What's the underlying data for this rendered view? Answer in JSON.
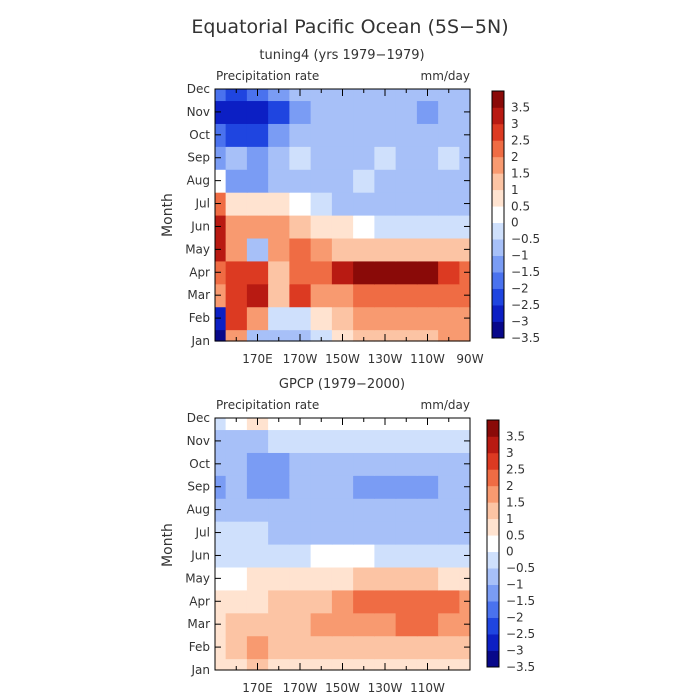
{
  "figure": {
    "title": "Equatorial Pacific Ocean (5S−5N)"
  },
  "colorbar_colors": [
    "#08088a",
    "#0c1fc4",
    "#1f45e0",
    "#4a72ee",
    "#7a9cf4",
    "#a7c0f8",
    "#cfe0fc",
    "#ffffff",
    "#ffe3d0",
    "#fcc4a4",
    "#f89a70",
    "#ef6c44",
    "#dc3a22",
    "#b81a12",
    "#8a0a08"
  ],
  "chart_data": [
    {
      "type": "heatmap",
      "title": "tuning4 (yrs 1979−1979)",
      "left_label": "Precipitation rate",
      "units": "mm/day",
      "ylabel": "Month",
      "xlabel": "",
      "y_ticks": [
        "Jan",
        "Feb",
        "Mar",
        "Apr",
        "May",
        "Jun",
        "Jul",
        "Aug",
        "Sep",
        "Oct",
        "Nov",
        "Dec"
      ],
      "x_ticks": [
        "170E",
        "170W",
        "150W",
        "130W",
        "110W",
        "90W"
      ],
      "xlim": [
        150,
        270
      ],
      "levels": [
        "3.5",
        "3",
        "2.5",
        "2",
        "1.5",
        "1",
        "0.5",
        "0",
        "−0.5",
        "−1",
        "−1.5",
        "−2",
        "−2.5",
        "−3",
        "−3.5"
      ],
      "lon": [
        150,
        160,
        170,
        180,
        190,
        200,
        210,
        220,
        230,
        240,
        250,
        260,
        270
      ],
      "values": [
        [
          -3.5,
          1.5,
          -1.0,
          -1.0,
          -1.0,
          -0.5,
          0.5,
          1.0,
          1.0,
          1.0,
          1.0,
          1.5,
          1.5
        ],
        [
          -3.0,
          2.5,
          1.5,
          -0.5,
          -0.5,
          0.5,
          1.0,
          1.5,
          1.5,
          1.5,
          1.5,
          1.5,
          1.5
        ],
        [
          1.5,
          2.5,
          3.0,
          1.0,
          2.5,
          1.5,
          1.5,
          2.0,
          2.0,
          2.0,
          2.0,
          2.0,
          2.0
        ],
        [
          2.0,
          2.5,
          2.5,
          1.0,
          2.0,
          2.0,
          3.0,
          3.5,
          3.5,
          3.5,
          3.5,
          2.5,
          2.0
        ],
        [
          3.0,
          1.5,
          -1.0,
          1.5,
          2.0,
          1.5,
          1.0,
          1.0,
          1.0,
          1.0,
          1.0,
          1.0,
          1.0
        ],
        [
          3.0,
          1.5,
          1.5,
          1.5,
          1.0,
          0.5,
          0.5,
          0.0,
          -0.5,
          -0.5,
          -0.5,
          -0.5,
          -0.5
        ],
        [
          2.0,
          0.5,
          0.5,
          0.5,
          0.0,
          -0.5,
          -1.0,
          -1.0,
          -1.0,
          -1.0,
          -1.0,
          -1.0,
          -1.0
        ],
        [
          0.0,
          -1.5,
          -1.5,
          -1.0,
          -1.0,
          -1.0,
          -1.0,
          -0.5,
          -1.0,
          -1.0,
          -1.0,
          -1.0,
          -1.0
        ],
        [
          -1.5,
          -1.0,
          -1.5,
          -1.0,
          -0.5,
          -1.0,
          -1.0,
          -1.0,
          -0.5,
          -1.0,
          -1.0,
          -0.5,
          -1.0
        ],
        [
          -2.0,
          -2.5,
          -2.5,
          -1.5,
          -1.0,
          -1.0,
          -1.0,
          -1.0,
          -1.0,
          -1.0,
          -1.0,
          -1.0,
          -1.0
        ],
        [
          -3.0,
          -3.0,
          -3.0,
          -2.5,
          -1.5,
          -1.0,
          -1.0,
          -1.0,
          -1.0,
          -1.0,
          -1.5,
          -1.0,
          -1.0
        ],
        [
          -2.0,
          -2.5,
          -2.0,
          -1.5,
          -1.0,
          -1.0,
          -1.0,
          -1.0,
          -1.0,
          -1.0,
          -1.0,
          -1.0,
          -1.0
        ]
      ]
    },
    {
      "type": "heatmap",
      "title": "GPCP (1979−2000)",
      "left_label": "Precipitation rate",
      "units": "mm/day",
      "ylabel": "Month",
      "xlabel": "",
      "y_ticks": [
        "Jan",
        "Feb",
        "Mar",
        "Apr",
        "May",
        "Jun",
        "Jul",
        "Aug",
        "Sep",
        "Oct",
        "Nov",
        "Dec"
      ],
      "x_ticks": [
        "170E",
        "170W",
        "150W",
        "130W",
        "110W"
      ],
      "xlim": [
        150,
        270
      ],
      "levels": [
        "3.5",
        "3",
        "2.5",
        "2",
        "1.5",
        "1",
        "0.5",
        "0",
        "−0.5",
        "−1",
        "−1.5",
        "−2",
        "−2.5",
        "−3",
        "−3.5"
      ],
      "lon": [
        150,
        160,
        170,
        180,
        190,
        200,
        210,
        220,
        230,
        240,
        250,
        260,
        270
      ],
      "values": [
        [
          0.5,
          0.5,
          1.0,
          0.5,
          0.5,
          0.5,
          0.5,
          0.5,
          0.5,
          0.5,
          0.5,
          0.5,
          0.5
        ],
        [
          0.5,
          1.0,
          1.5,
          1.0,
          1.0,
          1.0,
          1.0,
          1.0,
          1.0,
          1.0,
          1.0,
          1.0,
          1.0
        ],
        [
          0.5,
          1.0,
          1.0,
          1.0,
          1.0,
          1.5,
          1.5,
          1.5,
          1.5,
          2.0,
          2.0,
          1.5,
          1.5
        ],
        [
          0.5,
          0.5,
          0.5,
          1.0,
          1.0,
          1.0,
          1.5,
          2.0,
          2.0,
          2.0,
          2.0,
          2.0,
          1.5
        ],
        [
          0.0,
          0.0,
          0.5,
          0.5,
          0.5,
          0.5,
          0.5,
          1.0,
          1.0,
          1.0,
          1.0,
          0.5,
          0.5
        ],
        [
          -0.5,
          -0.5,
          -0.5,
          -0.5,
          -0.5,
          0.0,
          0.0,
          0.0,
          -0.5,
          -0.5,
          -0.5,
          -0.5,
          -0.5
        ],
        [
          -0.5,
          -0.5,
          -0.5,
          -1.0,
          -1.0,
          -1.0,
          -1.0,
          -1.0,
          -1.0,
          -1.0,
          -1.0,
          -1.0,
          -1.0
        ],
        [
          -1.0,
          -1.0,
          -1.0,
          -1.0,
          -1.0,
          -1.0,
          -1.0,
          -1.0,
          -1.0,
          -1.0,
          -1.0,
          -1.0,
          -1.0
        ],
        [
          -1.5,
          -1.0,
          -1.5,
          -1.5,
          -1.0,
          -1.0,
          -1.0,
          -1.5,
          -1.5,
          -1.5,
          -1.5,
          -1.0,
          -1.0
        ],
        [
          -1.0,
          -1.0,
          -1.5,
          -1.5,
          -1.0,
          -1.0,
          -1.0,
          -1.0,
          -1.0,
          -1.0,
          -1.0,
          -1.0,
          -1.0
        ],
        [
          -1.0,
          -1.0,
          -1.0,
          -0.5,
          -0.5,
          -0.5,
          -0.5,
          -0.5,
          -0.5,
          -0.5,
          -0.5,
          -0.5,
          -0.5
        ],
        [
          -0.5,
          0.0,
          0.5,
          0.0,
          0.0,
          0.0,
          0.0,
          0.0,
          0.0,
          0.0,
          0.0,
          0.0,
          0.0
        ]
      ]
    }
  ]
}
